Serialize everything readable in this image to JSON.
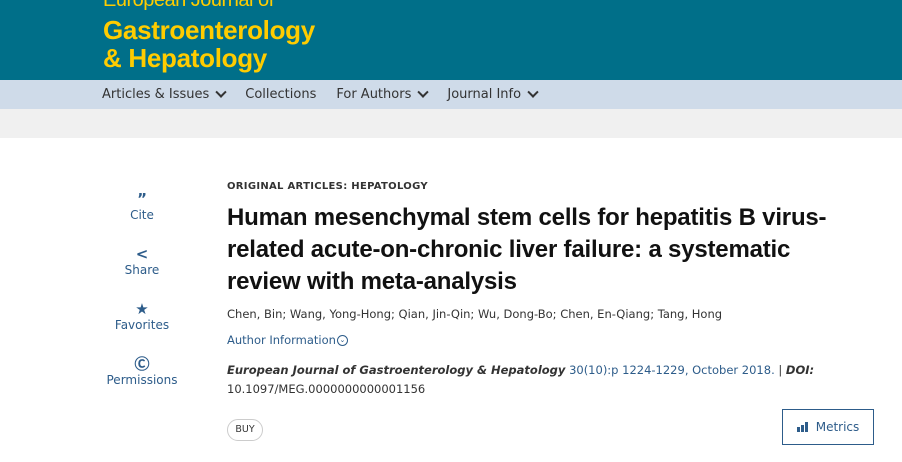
{
  "header": {
    "logo_line1": "European Journal of",
    "logo_line2": "Gastroenterology",
    "logo_line3": "& Hepatology"
  },
  "nav": {
    "items": [
      {
        "label": "Articles & Issues"
      },
      {
        "label": "Collections"
      },
      {
        "label": "For Authors"
      },
      {
        "label": "Journal Info"
      }
    ]
  },
  "sidebar": {
    "items": [
      {
        "label": "Cite",
        "icon": "”"
      },
      {
        "label": "Share",
        "icon": "<"
      },
      {
        "label": "Favorites",
        "icon": "★"
      },
      {
        "label": "Permissions",
        "icon": "Ⓒ"
      }
    ]
  },
  "article": {
    "category": "ORIGINAL ARTICLES: HEPATOLOGY",
    "title": "Human mesenchymal stem cells for hepatitis B virus-related acute-on-chronic liver failure: a systematic review with meta-analysis",
    "authors": "Chen, Bin; Wang, Yong-Hong; Qian, Jin-Qin; Wu, Dong-Bo; Chen, En-Qiang; Tang, Hong",
    "author_info": "Author Information",
    "journal": "European Journal of Gastroenterology & Hepatology",
    "issue": "30(10):p 1224-1229, October 2018.",
    "sep": " | ",
    "doi_label": "DOI:",
    "doi": "10.1097/MEG.0000000000001156",
    "buy": "BUY",
    "metrics": "Metrics"
  },
  "colors": {
    "header": "#006f89",
    "logo": "#ffcc00",
    "nav": "#cfdbe9",
    "link": "#2d5c8a"
  }
}
